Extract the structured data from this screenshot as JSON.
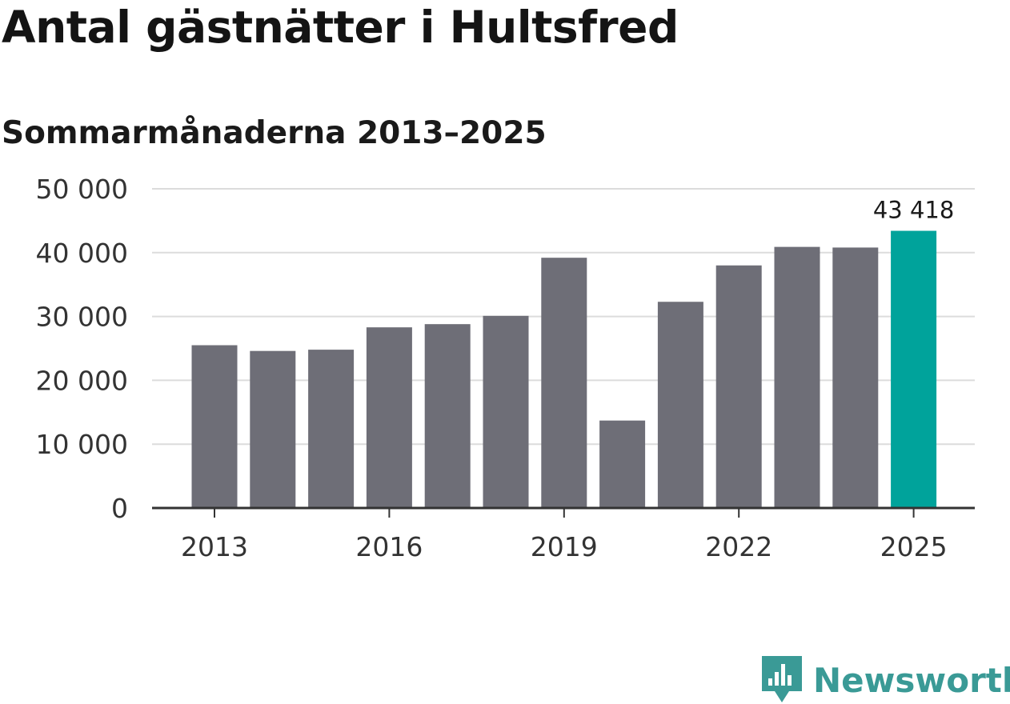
{
  "chart_data": {
    "type": "bar",
    "title": "Antal gästnätter i Hultsfred",
    "subtitle": "Sommarmånaderna 2013–2025",
    "categories": [
      "2013",
      "2014",
      "2015",
      "2016",
      "2017",
      "2018",
      "2019",
      "2020",
      "2021",
      "2022",
      "2023",
      "2024",
      "2025"
    ],
    "values": [
      25500,
      24600,
      24800,
      28300,
      28800,
      30100,
      39200,
      13700,
      32300,
      38000,
      40900,
      40800,
      43418
    ],
    "ylim": [
      0,
      50000
    ],
    "yticks": [
      0,
      10000,
      20000,
      30000,
      40000,
      50000
    ],
    "ytick_labels": [
      "0",
      "10 000",
      "20 000",
      "30 000",
      "40 000",
      "50 000"
    ],
    "xtick_labels": [
      "2013",
      "2016",
      "2019",
      "2022",
      "2025"
    ],
    "data_labels": [
      {
        "category": "2025",
        "text": "43 418"
      }
    ],
    "highlight_category": "2025",
    "grid": true,
    "colors": {
      "bar": "#6e6e77",
      "highlight": "#00a39b",
      "grid": "#dcdcdc",
      "axis": "#333333"
    }
  },
  "brand": {
    "name": "Newsworthy",
    "color": "#3a9a96",
    "icon": "chart-speech-bubble-icon"
  }
}
